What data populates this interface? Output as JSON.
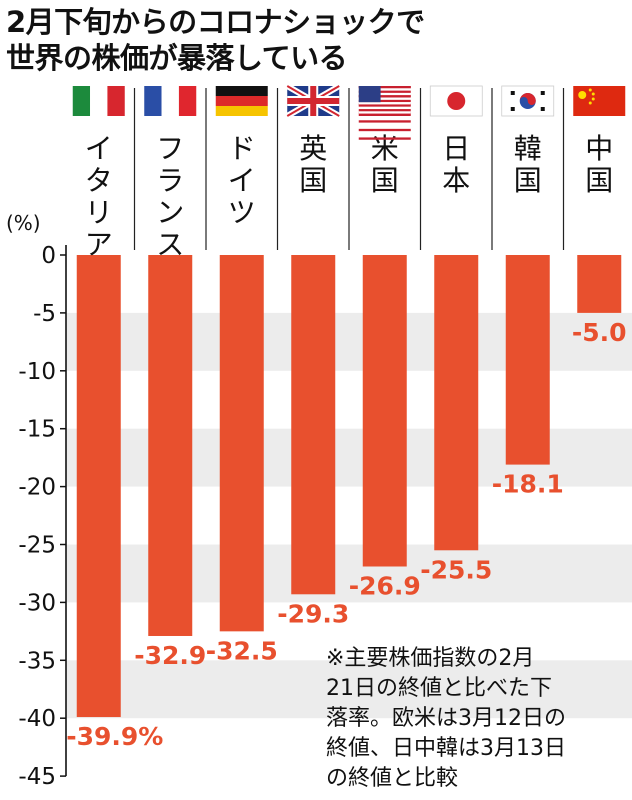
{
  "title": {
    "line1": "2月下旬からのコロナショックで",
    "line2": "世界の株価が暴落している"
  },
  "chart_data": {
    "type": "bar",
    "categories": [
      "イタリア",
      "フランス",
      "ドイツ",
      "英国",
      "米国",
      "日本",
      "韓国",
      "中国"
    ],
    "flags": [
      "italy-flag-icon",
      "france-flag-icon",
      "germany-flag-icon",
      "uk-flag-icon",
      "us-flag-icon",
      "japan-flag-icon",
      "korea-flag-icon",
      "china-flag-icon"
    ],
    "values": [
      -39.9,
      -32.9,
      -32.5,
      -29.3,
      -26.9,
      -25.5,
      -18.1,
      -5.0
    ],
    "value_labels": [
      "-39.9%",
      "-32.9",
      "-32.5",
      "-29.3",
      "-26.9",
      "-25.5",
      "-18.1",
      "-5.0"
    ],
    "unit_label": "(%)",
    "yticks": [
      0,
      -5,
      -10,
      -15,
      -20,
      -25,
      -30,
      -35,
      -40,
      -45
    ],
    "ytick_labels": [
      "0",
      "-5",
      "-10",
      "-15",
      "-20",
      "-25",
      "-30",
      "-35",
      "-40",
      "-45"
    ],
    "ylim": [
      -45,
      0
    ],
    "grid_bands": true,
    "bar_color": "#e8502e",
    "band_color": "#ececec",
    "label_color": "#e8502e"
  },
  "note": {
    "lines": [
      "※主要株価指数の2月",
      "21日の終値と比べた下",
      "落率。欧米は3月12日の",
      "終値、日中韓は3月13日",
      "の終値と比較"
    ]
  }
}
